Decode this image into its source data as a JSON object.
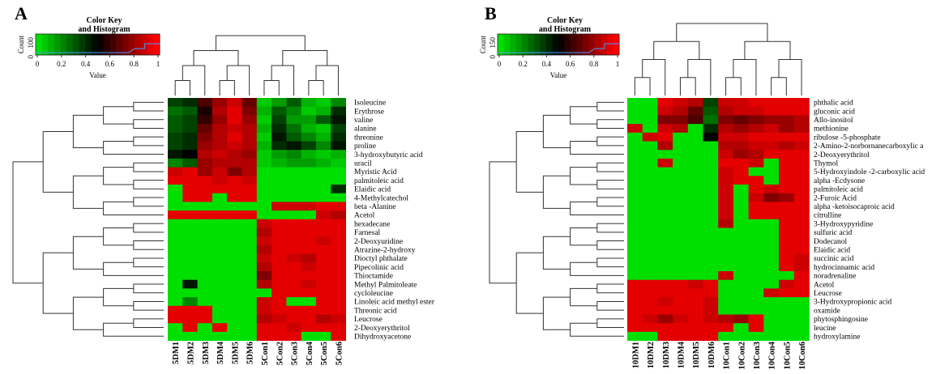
{
  "chart_data": [
    {
      "type": "heatmap",
      "panel": "A",
      "key_title": [
        "Color Key",
        "and Histogram"
      ],
      "key_ylabel": "Count",
      "key_yticks": [
        "0",
        "100"
      ],
      "key_xlabel": "Value",
      "key_xticks": [
        "0",
        "0.2",
        "0.4",
        "0.6",
        "0.8",
        "1"
      ],
      "colors": {
        "low": "#00e000",
        "mid": "#000000",
        "high": "#ff0000"
      },
      "columns": [
        "5DM1",
        "5DM2",
        "5DM3",
        "5DM4",
        "5DM5",
        "5DM6",
        "5Con1",
        "5Con2",
        "5Con3",
        "5Con4",
        "5Con5",
        "5Con6"
      ],
      "rows": [
        "Isoleucine",
        "Erythrose",
        "valine",
        "alanine",
        "threonine",
        "proline",
        "3-hydroxybutyric acid",
        "uracil",
        "Myristic Acid",
        "palmitoleic acid",
        "Elaidic acid",
        "4-Methylcatechol",
        "beta -Alanine",
        "Acetol",
        "hexadecane",
        "Farnesal",
        "2-Deoxyuridine",
        "Atrazine-2-hydroxy",
        "Dioctyl phthalate",
        "Pipecolinic acid",
        "Thioctamide",
        "Methyl Palmitoleate",
        "cycloleucine",
        "Linoleic acid methyl ester",
        "Threonic acid",
        "Leucrose",
        "2-Deoxyerythritol",
        "Dihydroxyacetone"
      ],
      "values": [
        [
          0.35,
          0.4,
          0.65,
          0.8,
          0.9,
          0.7,
          0.05,
          0.15,
          0.3,
          0.1,
          0.05,
          0.2
        ],
        [
          0.25,
          0.3,
          0.55,
          0.85,
          0.95,
          0.75,
          0.1,
          0.3,
          0.2,
          0.05,
          0.1,
          0.4
        ],
        [
          0.3,
          0.35,
          0.6,
          0.8,
          0.95,
          0.8,
          0.05,
          0.35,
          0.15,
          0.15,
          0.3,
          0.45
        ],
        [
          0.3,
          0.35,
          0.7,
          0.85,
          0.9,
          0.85,
          0.1,
          0.4,
          0.25,
          0.1,
          0.05,
          0.35
        ],
        [
          0.35,
          0.4,
          0.75,
          0.85,
          0.95,
          0.85,
          0.05,
          0.45,
          0.3,
          0.2,
          0.1,
          0.4
        ],
        [
          0.35,
          0.4,
          0.8,
          0.85,
          0.9,
          0.85,
          0.1,
          0.4,
          0.45,
          0.35,
          0.2,
          0.45
        ],
        [
          0.45,
          0.5,
          0.85,
          0.9,
          0.85,
          0.8,
          0.05,
          0.15,
          0.2,
          0.1,
          0.05,
          0.1
        ],
        [
          0.2,
          0.3,
          0.8,
          0.85,
          0.85,
          0.85,
          0.05,
          0.1,
          0.15,
          0.15,
          0.1,
          0.05
        ],
        [
          0.9,
          0.95,
          0.8,
          0.9,
          0.75,
          0.85,
          0.0,
          0.0,
          0.0,
          0.0,
          0.0,
          0.0
        ],
        [
          0.95,
          0.95,
          0.95,
          0.9,
          0.95,
          0.9,
          0.0,
          0.0,
          0.0,
          0.0,
          0.0,
          0.0
        ],
        [
          0.0,
          0.95,
          0.95,
          0.95,
          0.95,
          0.95,
          0.0,
          0.0,
          0.0,
          0.0,
          0.0,
          0.4
        ],
        [
          0.0,
          0.95,
          0.95,
          0.0,
          0.95,
          0.95,
          0.0,
          0.0,
          0.0,
          0.0,
          0.0,
          0.0
        ],
        [
          0.0,
          0.0,
          0.0,
          0.0,
          0.0,
          0.0,
          0.0,
          0.9,
          0.9,
          0.9,
          0.95,
          0.95
        ],
        [
          0.95,
          0.95,
          0.95,
          0.95,
          0.95,
          0.95,
          0.0,
          0.0,
          0.0,
          0.0,
          0.9,
          0.85
        ],
        [
          0.0,
          0.0,
          0.0,
          0.0,
          0.0,
          0.0,
          0.9,
          0.95,
          0.95,
          0.95,
          0.95,
          0.95
        ],
        [
          0.0,
          0.0,
          0.0,
          0.0,
          0.0,
          0.0,
          0.85,
          0.95,
          0.95,
          0.95,
          0.95,
          0.95
        ],
        [
          0.0,
          0.0,
          0.0,
          0.0,
          0.0,
          0.0,
          0.9,
          0.95,
          0.95,
          0.95,
          0.9,
          0.95
        ],
        [
          0.0,
          0.0,
          0.0,
          0.0,
          0.0,
          0.0,
          0.85,
          0.95,
          0.95,
          0.95,
          0.95,
          0.95
        ],
        [
          0.0,
          0.0,
          0.0,
          0.0,
          0.0,
          0.0,
          0.9,
          0.95,
          0.9,
          0.85,
          0.95,
          0.95
        ],
        [
          0.0,
          0.0,
          0.0,
          0.0,
          0.0,
          0.0,
          0.85,
          0.95,
          0.95,
          0.9,
          0.95,
          0.95
        ],
        [
          0.0,
          0.0,
          0.0,
          0.0,
          0.0,
          0.0,
          0.75,
          0.95,
          0.95,
          0.95,
          0.95,
          0.95
        ],
        [
          0.0,
          0.45,
          0.0,
          0.0,
          0.0,
          0.0,
          0.85,
          0.95,
          0.95,
          0.9,
          0.95,
          0.95
        ],
        [
          0.0,
          0.0,
          0.0,
          0.0,
          0.0,
          0.0,
          0.0,
          0.95,
          0.95,
          0.95,
          0.95,
          0.95
        ],
        [
          0.0,
          0.2,
          0.0,
          0.0,
          0.0,
          0.0,
          0.9,
          0.95,
          0.0,
          0.0,
          0.95,
          0.95
        ],
        [
          0.95,
          0.95,
          0.95,
          0.0,
          0.0,
          0.0,
          0.9,
          0.95,
          0.95,
          0.95,
          0.95,
          0.95
        ],
        [
          0.95,
          0.95,
          0.95,
          0.0,
          0.0,
          0.0,
          0.85,
          0.9,
          0.95,
          0.95,
          0.85,
          0.9
        ],
        [
          0.0,
          0.95,
          0.0,
          0.95,
          0.0,
          0.0,
          0.95,
          0.95,
          0.9,
          0.95,
          0.95,
          0.95
        ],
        [
          0.0,
          0.0,
          0.0,
          0.0,
          0.0,
          0.0,
          0.95,
          0.95,
          0.95,
          0.0,
          0.0,
          0.95
        ]
      ]
    },
    {
      "type": "heatmap",
      "panel": "B",
      "key_title": [
        "Color Key",
        "and Histogram"
      ],
      "key_ylabel": "Count",
      "key_yticks": [
        "0",
        "150"
      ],
      "key_xlabel": "Value",
      "key_xticks": [
        "0",
        "0.2",
        "0.4",
        "0.6",
        "0.8",
        "1"
      ],
      "colors": {
        "low": "#00e000",
        "mid": "#000000",
        "high": "#ff0000"
      },
      "columns": [
        "10DM1",
        "10DM2",
        "10DM3",
        "10DM4",
        "10DM5",
        "10DM6",
        "10Con1",
        "10Con2",
        "10Con3",
        "10Con4",
        "10Con5",
        "10Con6"
      ],
      "rows": [
        "phthalic acid",
        "gluconic acid",
        "Allo-inositol",
        "methionine",
        "ribulose -5-phosphate",
        "2-Amino-2-norbornanecarboxylic a",
        "2-Deoxyerythritol",
        "Thymol",
        "5-Hydroxyindole -2-carboxylic acid",
        "alpha -Ecdysone",
        "palmitoleic acid",
        "2-Furoic Acid",
        "alpha -ketoisocaproic acid",
        "citrulline",
        "3-Hydroxypyridine",
        "sulfuric acid",
        "Dodecanol",
        "Elaidic acid",
        "succinic acid",
        "hydrocinnamic acid",
        "noradrenaline",
        "Acetol",
        "Leucrose",
        "3-Hydroxypropionic acid",
        "oxamide",
        "phytosphingosine",
        "leucine",
        "hydroxylamine"
      ],
      "values": [
        [
          0.0,
          0.0,
          0.95,
          0.9,
          0.85,
          0.35,
          0.9,
          0.9,
          0.95,
          0.95,
          0.95,
          0.95
        ],
        [
          0.0,
          0.0,
          0.9,
          0.85,
          0.7,
          0.3,
          0.85,
          0.9,
          0.9,
          0.95,
          0.95,
          0.95
        ],
        [
          0.0,
          0.0,
          0.75,
          0.75,
          0.65,
          0.25,
          0.75,
          0.7,
          0.75,
          0.8,
          0.8,
          0.85
        ],
        [
          0.9,
          0.0,
          0.9,
          0.85,
          0.0,
          0.4,
          0.85,
          0.8,
          0.85,
          0.9,
          0.8,
          0.85
        ],
        [
          0.0,
          0.9,
          0.95,
          0.0,
          0.0,
          0.5,
          0.9,
          0.9,
          0.95,
          0.95,
          0.95,
          0.95
        ],
        [
          0.0,
          0.0,
          0.85,
          0.0,
          0.0,
          0.0,
          0.85,
          0.85,
          0.9,
          0.9,
          0.85,
          0.9
        ],
        [
          0.0,
          0.0,
          0.0,
          0.0,
          0.0,
          0.0,
          0.9,
          0.8,
          0.85,
          0.95,
          0.95,
          0.95
        ],
        [
          0.0,
          0.0,
          0.9,
          0.0,
          0.0,
          0.0,
          0.95,
          0.95,
          0.9,
          0.0,
          0.95,
          0.95
        ],
        [
          0.0,
          0.0,
          0.0,
          0.0,
          0.0,
          0.0,
          0.9,
          0.95,
          0.0,
          0.0,
          0.95,
          0.95
        ],
        [
          0.0,
          0.0,
          0.0,
          0.0,
          0.0,
          0.0,
          0.9,
          0.95,
          0.95,
          0.0,
          0.95,
          0.95
        ],
        [
          0.0,
          0.0,
          0.0,
          0.0,
          0.0,
          0.0,
          0.9,
          0.0,
          0.95,
          0.9,
          0.95,
          0.95
        ],
        [
          0.0,
          0.0,
          0.0,
          0.0,
          0.0,
          0.0,
          0.9,
          0.0,
          0.9,
          0.75,
          0.8,
          0.95
        ],
        [
          0.0,
          0.0,
          0.0,
          0.0,
          0.0,
          0.0,
          0.9,
          0.0,
          0.95,
          0.95,
          0.95,
          0.95
        ],
        [
          0.0,
          0.0,
          0.0,
          0.0,
          0.0,
          0.0,
          0.9,
          0.0,
          0.95,
          0.95,
          0.95,
          0.95
        ],
        [
          0.0,
          0.0,
          0.0,
          0.0,
          0.0,
          0.0,
          0.85,
          0.0,
          0.0,
          0.0,
          0.95,
          0.95
        ],
        [
          0.0,
          0.0,
          0.0,
          0.0,
          0.0,
          0.0,
          0.0,
          0.0,
          0.0,
          0.0,
          0.95,
          0.95
        ],
        [
          0.0,
          0.0,
          0.0,
          0.0,
          0.0,
          0.0,
          0.0,
          0.0,
          0.0,
          0.0,
          0.95,
          0.95
        ],
        [
          0.0,
          0.0,
          0.0,
          0.0,
          0.0,
          0.0,
          0.0,
          0.0,
          0.0,
          0.0,
          0.95,
          0.95
        ],
        [
          0.0,
          0.0,
          0.0,
          0.0,
          0.0,
          0.0,
          0.0,
          0.0,
          0.0,
          0.0,
          0.95,
          0.9
        ],
        [
          0.0,
          0.0,
          0.0,
          0.0,
          0.0,
          0.0,
          0.0,
          0.0,
          0.0,
          0.0,
          0.95,
          0.9
        ],
        [
          0.0,
          0.0,
          0.0,
          0.0,
          0.0,
          0.0,
          0.9,
          0.0,
          0.0,
          0.0,
          0.0,
          0.95
        ],
        [
          0.95,
          0.95,
          0.95,
          0.95,
          0.9,
          0.95,
          0.0,
          0.0,
          0.0,
          0.0,
          0.9,
          0.95
        ],
        [
          0.95,
          0.95,
          0.95,
          0.95,
          0.95,
          0.95,
          0.0,
          0.0,
          0.0,
          0.9,
          0.95,
          0.95
        ],
        [
          0.95,
          0.95,
          0.9,
          0.95,
          0.95,
          0.9,
          0.0,
          0.0,
          0.0,
          0.0,
          0.0,
          0.0
        ],
        [
          0.95,
          0.95,
          0.95,
          0.95,
          0.95,
          0.9,
          0.0,
          0.0,
          0.0,
          0.0,
          0.0,
          0.0
        ],
        [
          0.95,
          0.9,
          0.8,
          0.9,
          0.95,
          0.9,
          0.85,
          0.8,
          0.95,
          0.0,
          0.0,
          0.0
        ],
        [
          0.95,
          0.95,
          0.95,
          0.95,
          0.95,
          0.95,
          0.95,
          0.0,
          0.95,
          0.0,
          0.0,
          0.0
        ],
        [
          0.0,
          0.0,
          0.95,
          0.95,
          0.95,
          0.95,
          0.0,
          0.0,
          0.0,
          0.0,
          0.0,
          0.0
        ]
      ]
    }
  ]
}
